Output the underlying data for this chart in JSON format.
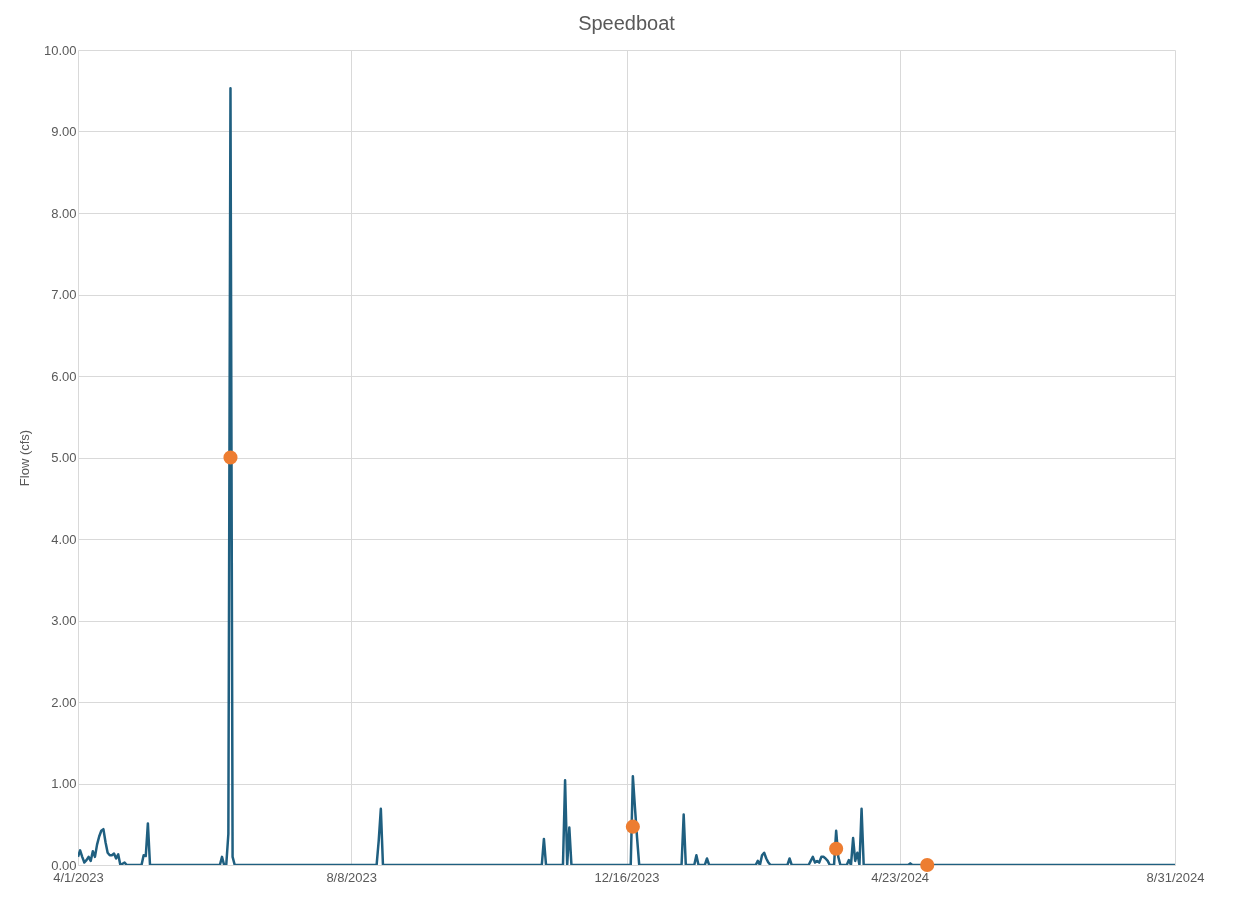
{
  "chart_data": {
    "type": "line",
    "title": "Speedboat",
    "ylabel": "Flow (cfs)",
    "xlim": [
      "2023-04-01",
      "2024-08-31"
    ],
    "xticks": [
      {
        "value": "2023-04-01",
        "label": "4/1/2023"
      },
      {
        "value": "2023-08-08",
        "label": "8/8/2023"
      },
      {
        "value": "2023-12-16",
        "label": "12/16/2023"
      },
      {
        "value": "2024-04-23",
        "label": "4/23/2024"
      },
      {
        "value": "2024-08-31",
        "label": "8/31/2024"
      }
    ],
    "ylim": [
      0,
      10
    ],
    "yticks": [
      {
        "value": 0,
        "label": "0.00"
      },
      {
        "value": 1,
        "label": "1.00"
      },
      {
        "value": 2,
        "label": "2.00"
      },
      {
        "value": 3,
        "label": "3.00"
      },
      {
        "value": 4,
        "label": "4.00"
      },
      {
        "value": 5,
        "label": "5.00"
      },
      {
        "value": 6,
        "label": "6.00"
      },
      {
        "value": 7,
        "label": "7.00"
      },
      {
        "value": 8,
        "label": "8.00"
      },
      {
        "value": 9,
        "label": "9.00"
      },
      {
        "value": 10,
        "label": "10.00"
      }
    ],
    "grid": true,
    "series": [
      {
        "color": "#1f5f80",
        "marker": "none",
        "x": [
          "2023-04-01",
          "2023-04-02",
          "2023-04-03",
          "2023-04-04",
          "2023-04-05",
          "2023-04-06",
          "2023-04-07",
          "2023-04-08",
          "2023-04-09",
          "2023-04-10",
          "2023-04-11",
          "2023-04-12",
          "2023-04-13",
          "2023-04-14",
          "2023-04-15",
          "2023-04-16",
          "2023-04-17",
          "2023-04-18",
          "2023-04-19",
          "2023-04-20",
          "2023-04-21",
          "2023-04-23",
          "2023-04-24",
          "2023-05-01",
          "2023-05-02",
          "2023-05-03",
          "2023-05-04",
          "2023-05-05",
          "2023-06-07",
          "2023-06-08",
          "2023-06-09",
          "2023-06-10",
          "2023-06-11",
          "2023-06-12",
          "2023-06-13",
          "2023-06-14",
          "2023-08-20",
          "2023-08-21",
          "2023-08-22",
          "2023-08-23",
          "2023-11-06",
          "2023-11-07",
          "2023-11-08",
          "2023-11-16",
          "2023-11-17",
          "2023-11-18",
          "2023-11-19",
          "2023-11-20",
          "2023-12-18",
          "2023-12-19",
          "2023-12-20",
          "2023-12-21",
          "2023-12-22",
          "2024-01-11",
          "2024-01-12",
          "2024-01-13",
          "2024-01-17",
          "2024-01-18",
          "2024-01-19",
          "2024-01-22",
          "2024-01-23",
          "2024-01-24",
          "2024-02-15",
          "2024-02-16",
          "2024-02-17",
          "2024-02-18",
          "2024-02-19",
          "2024-02-20",
          "2024-02-21",
          "2024-02-22",
          "2024-03-01",
          "2024-03-02",
          "2024-03-03",
          "2024-03-11",
          "2024-03-12",
          "2024-03-13",
          "2024-03-14",
          "2024-03-15",
          "2024-03-16",
          "2024-03-17",
          "2024-03-18",
          "2024-03-19",
          "2024-03-20",
          "2024-03-21",
          "2024-03-23",
          "2024-03-24",
          "2024-03-25",
          "2024-03-26",
          "2024-03-29",
          "2024-03-30",
          "2024-03-31",
          "2024-04-01",
          "2024-04-02",
          "2024-04-03",
          "2024-04-04",
          "2024-04-05",
          "2024-04-06",
          "2024-04-27",
          "2024-04-28",
          "2024-04-29",
          "2024-08-31"
        ],
        "values": [
          0.1,
          0.18,
          0.1,
          0.03,
          0.06,
          0.1,
          0.05,
          0.17,
          0.1,
          0.25,
          0.35,
          0.42,
          0.44,
          0.28,
          0.15,
          0.12,
          0.12,
          0.14,
          0.08,
          0.13,
          0,
          0.03,
          0,
          0,
          0.12,
          0.11,
          0.51,
          0,
          0,
          0.1,
          0,
          0,
          0.38,
          9.53,
          0.1,
          0,
          0,
          0.3,
          0.69,
          0,
          0,
          0.32,
          0,
          0,
          1.04,
          0,
          0.46,
          0,
          0,
          1.09,
          0.7,
          0.33,
          0,
          0,
          0.62,
          0,
          0,
          0.12,
          0,
          0,
          0.08,
          0,
          0,
          0.05,
          0,
          0.12,
          0.15,
          0.08,
          0.03,
          0,
          0,
          0.08,
          0,
          0,
          0.05,
          0.1,
          0.03,
          0.05,
          0.03,
          0.1,
          0.1,
          0.08,
          0.05,
          0,
          0,
          0.42,
          0.1,
          0,
          0,
          0.06,
          0,
          0.33,
          0.05,
          0.15,
          0,
          0.69,
          0,
          0,
          0.02,
          0,
          0
        ]
      },
      {
        "type": "scatter",
        "color": "#ed7d31",
        "marker": "circle",
        "x": [
          "2023-06-12",
          "2023-12-19",
          "2024-03-24",
          "2024-05-06"
        ],
        "values": [
          5.0,
          0.47,
          0.2,
          0
        ]
      }
    ]
  }
}
